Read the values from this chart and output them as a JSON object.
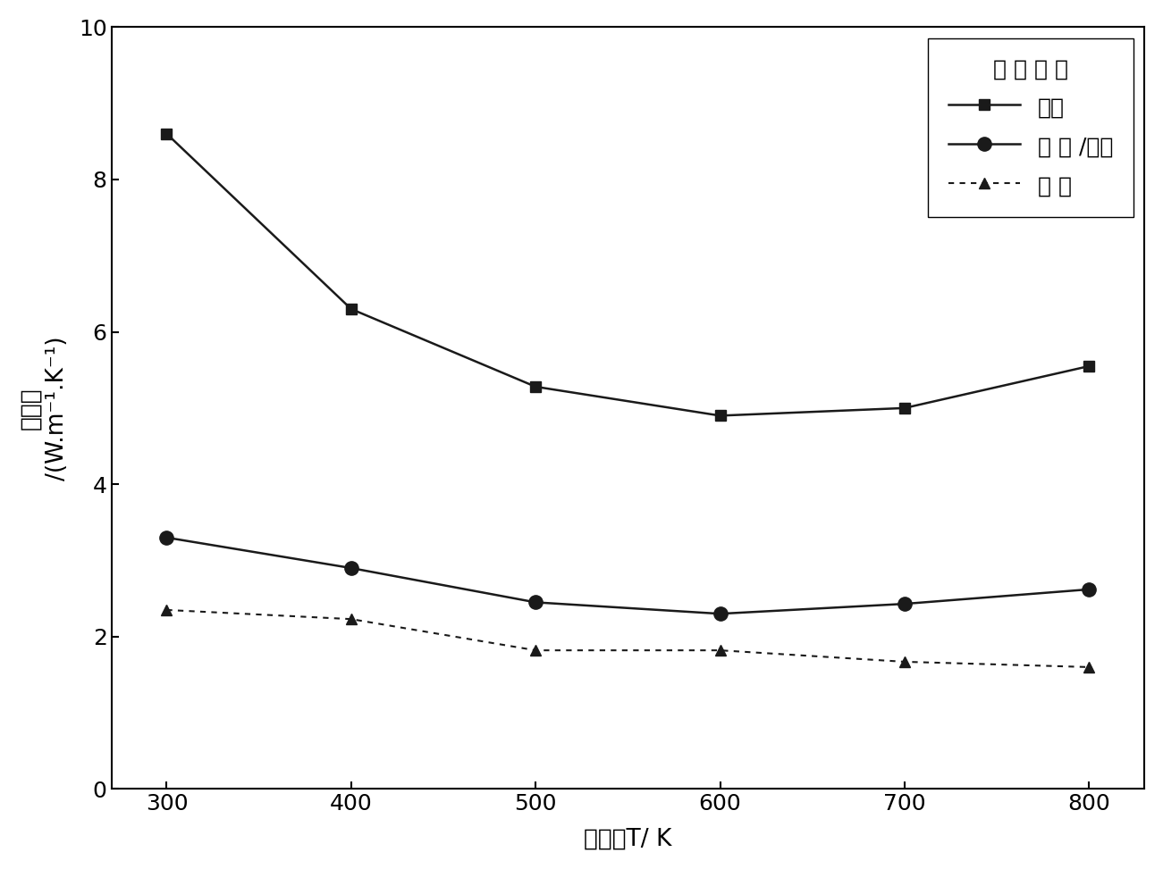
{
  "x": [
    300,
    400,
    500,
    600,
    700,
    800
  ],
  "micron": [
    8.6,
    6.3,
    5.28,
    4.9,
    5.0,
    5.55
  ],
  "nano_micron": [
    3.3,
    2.9,
    2.45,
    2.3,
    2.43,
    2.62
  ],
  "nano": [
    2.35,
    2.23,
    1.82,
    1.82,
    1.67,
    1.6
  ],
  "xlabel": "温度，T/ K",
  "ylabel_chinese": "热导率",
  "ylabel_formula": "/(W.m⁻¹.K⁻¹)",
  "legend_title": "晶 粒 尺 寸",
  "legend_micron": "微米",
  "legend_nano_micron": "纳 米 /微米",
  "legend_nano": "纳 米",
  "xlim": [
    270,
    830
  ],
  "ylim": [
    0,
    10
  ],
  "yticks": [
    0,
    2,
    4,
    6,
    8,
    10
  ],
  "xticks": [
    300,
    400,
    500,
    600,
    700,
    800
  ],
  "color": "#1a1a1a",
  "figsize": [
    13.01,
    9.73
  ],
  "dpi": 100
}
